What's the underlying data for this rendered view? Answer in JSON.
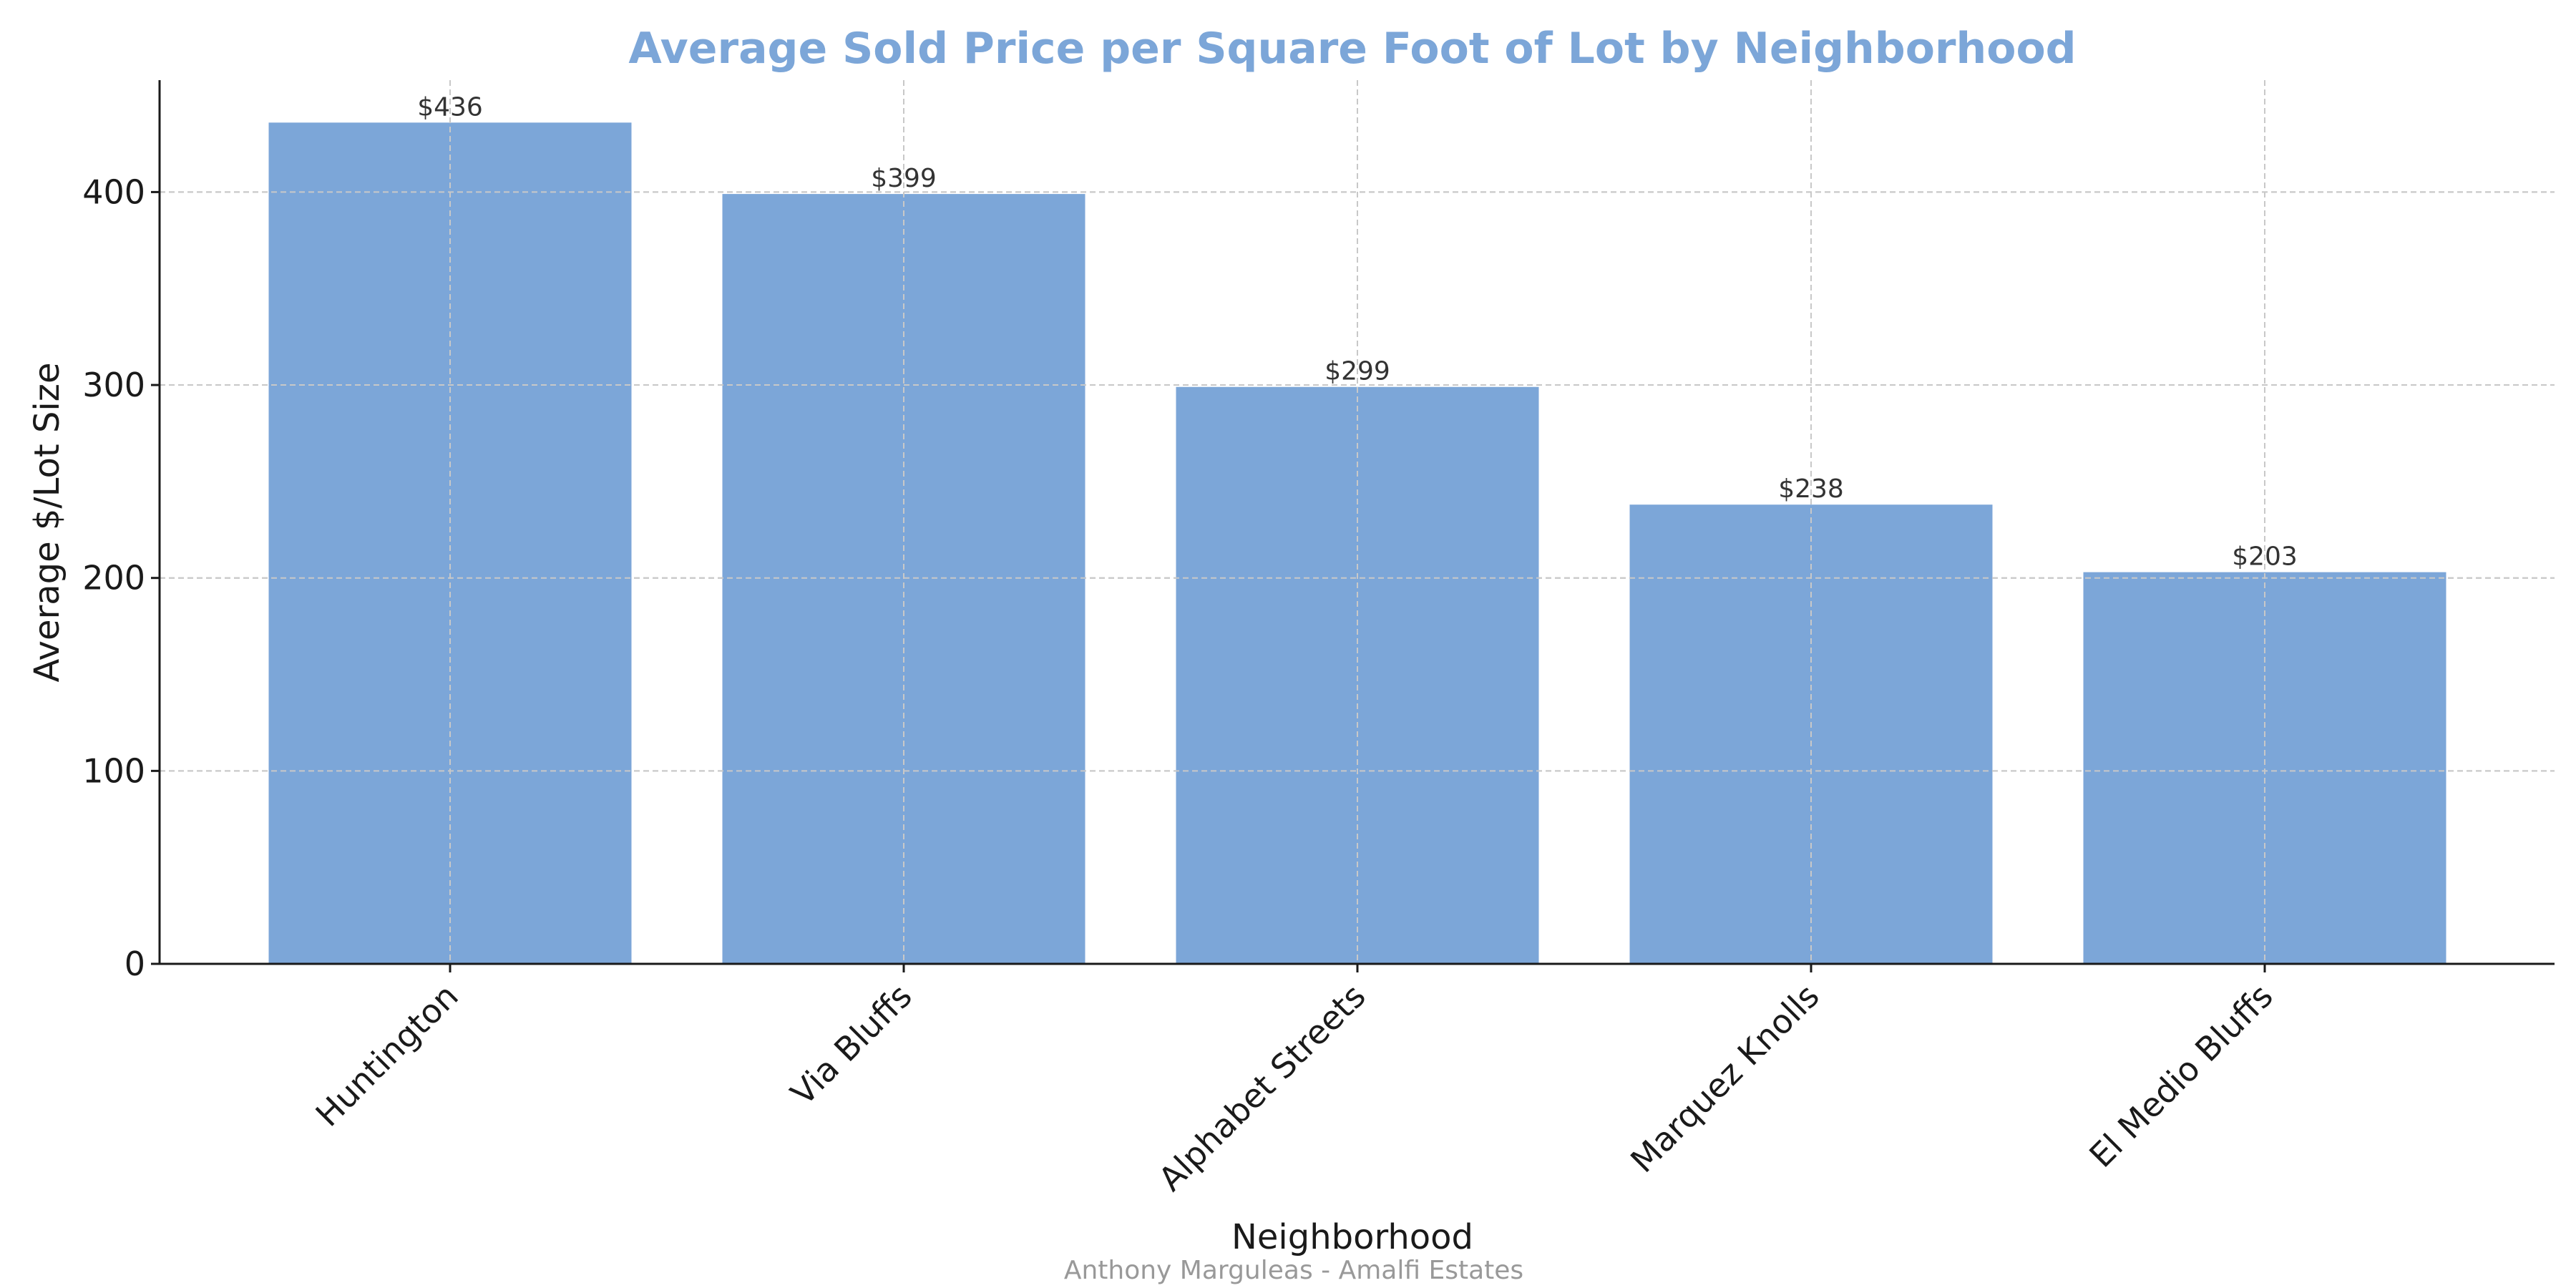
{
  "chart_data": {
    "type": "bar",
    "title": "Average Sold Price per Square Foot of Lot by Neighborhood",
    "xlabel": "Neighborhood",
    "ylabel": "Average $/Lot Size",
    "categories": [
      "Huntington",
      "Via Bluffs",
      "Alphabet Streets",
      "Marquez Knolls",
      "El Medio Bluffs"
    ],
    "values": [
      436,
      399,
      299,
      238,
      203
    ],
    "value_labels": [
      "$436",
      "$399",
      "$299",
      "$238",
      "$203"
    ],
    "yticks": [
      0,
      100,
      200,
      300,
      400
    ],
    "ylim": [
      0,
      458
    ],
    "grid": true,
    "bar_color": "#7ca6d8",
    "title_color": "#7ca6d8",
    "grid_color": "#c8c8c8"
  },
  "footer": {
    "credit": "Anthony Marguleas - Amalfi Estates",
    "credit_color": "#999999"
  }
}
